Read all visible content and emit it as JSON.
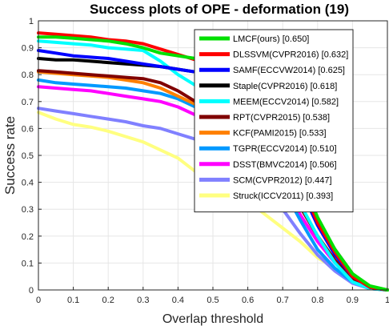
{
  "chart_data": {
    "type": "line",
    "title": "Success plots of OPE - deformation (19)",
    "xlabel": "Overlap threshold",
    "ylabel": "Success rate",
    "xlim": [
      0,
      1
    ],
    "ylim": [
      0,
      1
    ],
    "xticks": [
      "0",
      "0.1",
      "0.2",
      "0.3",
      "0.4",
      "0.5",
      "0.6",
      "0.7",
      "0.8",
      "0.9",
      "1"
    ],
    "yticks": [
      "0",
      "0.1",
      "0.2",
      "0.3",
      "0.4",
      "0.5",
      "0.6",
      "0.7",
      "0.8",
      "0.9",
      "1"
    ],
    "grid": true,
    "legend_position": "top-right",
    "x": [
      0,
      0.05,
      0.1,
      0.15,
      0.2,
      0.25,
      0.3,
      0.35,
      0.4,
      0.45,
      0.5,
      0.55,
      0.6,
      0.65,
      0.7,
      0.75,
      0.8,
      0.85,
      0.9,
      0.95,
      1
    ],
    "series": [
      {
        "name": "LMCF(ours) [0.650]",
        "color": "#00e000",
        "values": [
          0.94,
          0.94,
          0.935,
          0.93,
          0.925,
          0.915,
          0.9,
          0.88,
          0.87,
          0.86,
          0.84,
          0.82,
          0.78,
          0.7,
          0.58,
          0.42,
          0.27,
          0.15,
          0.06,
          0.015,
          0.0
        ]
      },
      {
        "name": "DLSSVM(CVPR2016) [0.632]",
        "color": "#ff0000",
        "values": [
          0.955,
          0.95,
          0.945,
          0.94,
          0.93,
          0.925,
          0.915,
          0.895,
          0.875,
          0.855,
          0.83,
          0.8,
          0.76,
          0.68,
          0.55,
          0.4,
          0.25,
          0.14,
          0.05,
          0.01,
          0.0
        ]
      },
      {
        "name": "SAMF(ECCVW2014) [0.625]",
        "color": "#0000ff",
        "values": [
          0.89,
          0.88,
          0.87,
          0.865,
          0.86,
          0.85,
          0.84,
          0.83,
          0.82,
          0.81,
          0.79,
          0.77,
          0.73,
          0.65,
          0.52,
          0.38,
          0.24,
          0.13,
          0.05,
          0.01,
          0.0
        ]
      },
      {
        "name": "Staple(CVPR2016) [0.618]",
        "color": "#000000",
        "values": [
          0.86,
          0.855,
          0.855,
          0.85,
          0.845,
          0.84,
          0.835,
          0.83,
          0.82,
          0.81,
          0.79,
          0.77,
          0.74,
          0.67,
          0.55,
          0.4,
          0.25,
          0.15,
          0.06,
          0.01,
          0.0
        ]
      },
      {
        "name": "MEEM(ECCV2014) [0.582]",
        "color": "#00ffff",
        "values": [
          0.925,
          0.92,
          0.915,
          0.91,
          0.9,
          0.895,
          0.89,
          0.85,
          0.8,
          0.76,
          0.72,
          0.68,
          0.62,
          0.54,
          0.44,
          0.32,
          0.2,
          0.1,
          0.03,
          0.005,
          0.0
        ]
      },
      {
        "name": "RPT(CVPR2015) [0.538]",
        "color": "#800000",
        "values": [
          0.815,
          0.81,
          0.805,
          0.8,
          0.795,
          0.79,
          0.785,
          0.77,
          0.74,
          0.7,
          0.66,
          0.62,
          0.56,
          0.49,
          0.41,
          0.31,
          0.2,
          0.11,
          0.04,
          0.008,
          0.0
        ]
      },
      {
        "name": "KCF(PAMI2015) [0.533]",
        "color": "#ff8000",
        "values": [
          0.81,
          0.805,
          0.8,
          0.795,
          0.79,
          0.78,
          0.77,
          0.75,
          0.72,
          0.69,
          0.65,
          0.61,
          0.56,
          0.49,
          0.41,
          0.31,
          0.2,
          0.11,
          0.04,
          0.008,
          0.0
        ]
      },
      {
        "name": "TGPR(ECCV2014) [0.510]",
        "color": "#0099ff",
        "values": [
          0.78,
          0.77,
          0.765,
          0.76,
          0.755,
          0.75,
          0.74,
          0.73,
          0.71,
          0.68,
          0.64,
          0.6,
          0.55,
          0.48,
          0.38,
          0.26,
          0.15,
          0.08,
          0.03,
          0.005,
          0.0
        ]
      },
      {
        "name": "DSST(BMVC2014) [0.506]",
        "color": "#ff00ff",
        "values": [
          0.755,
          0.75,
          0.745,
          0.74,
          0.73,
          0.72,
          0.71,
          0.7,
          0.68,
          0.65,
          0.62,
          0.58,
          0.53,
          0.46,
          0.38,
          0.28,
          0.18,
          0.1,
          0.04,
          0.008,
          0.0
        ]
      },
      {
        "name": "SCM(CVPR2012) [0.447]",
        "color": "#8080ff",
        "values": [
          0.675,
          0.665,
          0.655,
          0.645,
          0.635,
          0.625,
          0.61,
          0.6,
          0.58,
          0.56,
          0.53,
          0.49,
          0.44,
          0.38,
          0.3,
          0.21,
          0.13,
          0.07,
          0.025,
          0.005,
          0.0
        ]
      },
      {
        "name": "Struck(ICCV2011) [0.393]",
        "color": "#ffff80",
        "values": [
          0.66,
          0.635,
          0.615,
          0.605,
          0.59,
          0.57,
          0.55,
          0.52,
          0.49,
          0.44,
          0.41,
          0.37,
          0.33,
          0.28,
          0.23,
          0.18,
          0.12,
          0.08,
          0.04,
          0.01,
          0.0
        ]
      }
    ]
  }
}
